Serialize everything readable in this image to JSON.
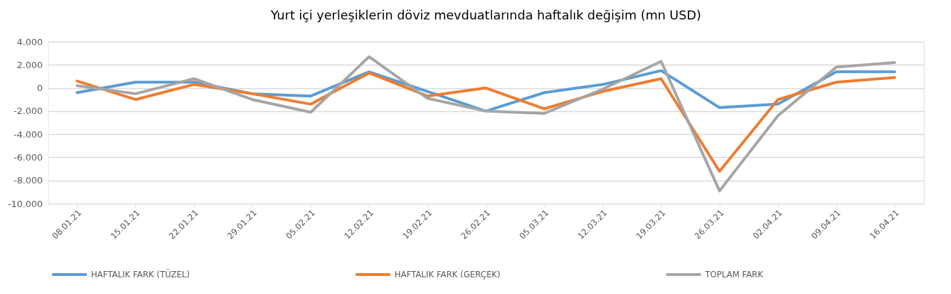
{
  "chart_data": {
    "type": "line",
    "title": "Yurt içi yerleşiklerin döviz mevduatlarında haftalık değişim (mn USD)",
    "categories": [
      "08.01.21",
      "15.01.21",
      "22.01.21",
      "29.01.21",
      "05.02.21",
      "12.02.21",
      "19.02.21",
      "26.02.21",
      "05.03.21",
      "12.03.21",
      "19.03.21",
      "26.03.21",
      "02.04.21",
      "09.04.21",
      "16.04.21"
    ],
    "series": [
      {
        "name": "HAFTALIK FARK (TÜZEL)",
        "color": "#5b9bd5",
        "values": [
          -400,
          500,
          500,
          -500,
          -700,
          1400,
          -300,
          -2000,
          -400,
          300,
          1500,
          -1700,
          -1400,
          1400,
          1400
        ]
      },
      {
        "name": "HAFTALIK FARK (GERÇEK)",
        "color": "#ed7d31",
        "values": [
          600,
          -1000,
          300,
          -500,
          -1400,
          1300,
          -700,
          0,
          -1800,
          -300,
          800,
          -7200,
          -1000,
          500,
          900
        ]
      },
      {
        "name": "TOPLAM FARK",
        "color": "#a5a5a5",
        "values": [
          200,
          -500,
          800,
          -1000,
          -2100,
          2700,
          -900,
          -2000,
          -2200,
          -100,
          2300,
          -8900,
          -2400,
          1800,
          2200
        ]
      }
    ],
    "ylim": [
      -10000,
      4000
    ],
    "yticks": [
      {
        "value": -10000,
        "label": "-10.000"
      },
      {
        "value": -8000,
        "label": "-8.000"
      },
      {
        "value": -6000,
        "label": "-6.000"
      },
      {
        "value": -4000,
        "label": "-4.000"
      },
      {
        "value": -2000,
        "label": "-2.000"
      },
      0,
      {
        "value": 2000,
        "label": "2.000"
      },
      {
        "value": 4000,
        "label": "4.000"
      }
    ],
    "grid": "y",
    "legend": "bottom",
    "line_style": "solid"
  }
}
